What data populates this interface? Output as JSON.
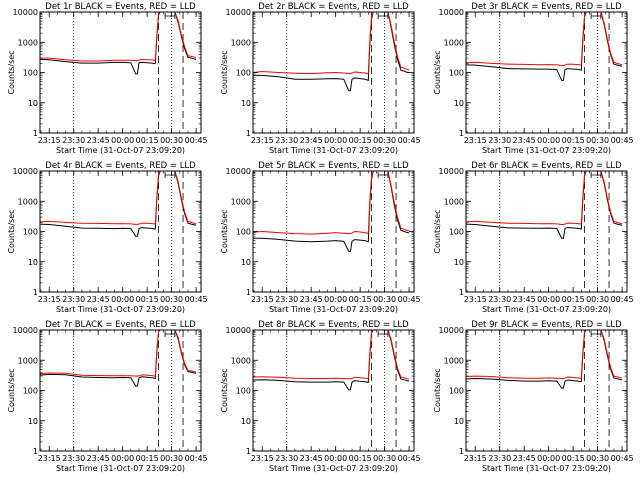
{
  "chart_data": {
    "type": "line",
    "scale": "log",
    "ylim": [
      1,
      10000
    ],
    "yticks": [
      "1",
      "10",
      "100",
      "1000",
      "10000"
    ],
    "ylabel": "Counts/sec",
    "xlabel": "Start Time (31-Oct-07 23:09:20)",
    "xlim": [
      "23:09:20",
      "00:48:00"
    ],
    "xtick_labels": [
      "23:15",
      "23:30",
      "23:45",
      "00:00",
      "00:15",
      "00:30",
      "00:45"
    ],
    "xticks": [
      "23:15",
      "23:30",
      "23:45",
      "00:00",
      "00:15",
      "00:30",
      "00:45"
    ],
    "dotted_lines": [
      "23:30",
      "00:30"
    ],
    "dashed_lines": [
      "00:22",
      "00:37"
    ],
    "colors": {
      "events": "#000000",
      "lld": "#ff0000"
    },
    "panels": [
      {
        "title": "Det 1r BLACK = Events, RED = LLD",
        "times": [
          "23:09",
          "23:15",
          "23:25",
          "23:35",
          "23:45",
          "23:55",
          "00:00",
          "00:05",
          "00:08",
          "00:09",
          "00:10",
          "00:11",
          "00:12",
          "00:15",
          "00:18",
          "00:20",
          "00:21",
          "00:22",
          "00:23",
          "00:24",
          "00:26",
          "00:30",
          "00:32",
          "00:34",
          "00:36",
          "00:38",
          "00:40",
          "00:42",
          "00:44",
          "00:45"
        ],
        "events": [
          270,
          265,
          230,
          205,
          205,
          215,
          215,
          210,
          90,
          90,
          210,
          215,
          215,
          210,
          205,
          195,
          1600,
          8000,
          10000,
          10000,
          10000,
          10000,
          10000,
          4500,
          1500,
          600,
          320,
          300,
          280,
          270
        ],
        "lld": [
          300,
          300,
          265,
          240,
          240,
          255,
          255,
          255,
          245,
          245,
          255,
          265,
          270,
          265,
          260,
          250,
          1800,
          9000,
          10000,
          10000,
          10000,
          10000,
          10000,
          5200,
          1700,
          700,
          360,
          340,
          320,
          310
        ],
        "series": [
          {
            "name": "Events",
            "color": "#000000"
          },
          {
            "name": "LLD",
            "color": "#ff0000"
          }
        ]
      },
      {
        "title": "Det 2r BLACK = Events, RED = LLD",
        "times": [
          "23:09",
          "23:15",
          "23:25",
          "23:35",
          "23:45",
          "23:55",
          "00:00",
          "00:05",
          "00:08",
          "00:09",
          "00:10",
          "00:11",
          "00:12",
          "00:15",
          "00:18",
          "00:20",
          "00:21",
          "00:22",
          "00:23",
          "00:24",
          "00:26",
          "00:30",
          "00:32",
          "00:34",
          "00:36",
          "00:38",
          "00:40",
          "00:42",
          "00:44",
          "00:45"
        ],
        "events": [
          80,
          80,
          72,
          60,
          60,
          62,
          63,
          60,
          25,
          25,
          60,
          65,
          66,
          63,
          60,
          55,
          1000,
          6000,
          10000,
          10000,
          10000,
          10000,
          10000,
          3000,
          800,
          260,
          120,
          110,
          100,
          100
        ],
        "lld": [
          100,
          108,
          100,
          95,
          92,
          98,
          100,
          96,
          92,
          92,
          96,
          102,
          104,
          100,
          96,
          90,
          1300,
          7000,
          10000,
          10000,
          10000,
          10000,
          10000,
          3500,
          1000,
          320,
          150,
          140,
          125,
          122
        ],
        "series": [
          {
            "name": "Events",
            "color": "#000000"
          },
          {
            "name": "LLD",
            "color": "#ff0000"
          }
        ]
      },
      {
        "title": "Det 3r BLACK = Events, RED = LLD",
        "times": [
          "23:09",
          "23:15",
          "23:25",
          "23:35",
          "23:45",
          "23:55",
          "00:00",
          "00:05",
          "00:08",
          "00:09",
          "00:10",
          "00:11",
          "00:12",
          "00:15",
          "00:18",
          "00:20",
          "00:21",
          "00:22",
          "00:23",
          "00:24",
          "00:26",
          "00:30",
          "00:32",
          "00:34",
          "00:36",
          "00:38",
          "00:40",
          "00:42",
          "00:44",
          "00:45"
        ],
        "events": [
          180,
          175,
          155,
          135,
          132,
          130,
          130,
          125,
          55,
          55,
          125,
          132,
          135,
          130,
          127,
          120,
          1300,
          7000,
          10000,
          10000,
          10000,
          10000,
          10000,
          3800,
          1100,
          380,
          190,
          175,
          165,
          160
        ],
        "lld": [
          210,
          218,
          200,
          190,
          185,
          180,
          182,
          178,
          170,
          170,
          176,
          186,
          190,
          186,
          182,
          175,
          1500,
          7800,
          10000,
          10000,
          10000,
          10000,
          10000,
          4300,
          1250,
          430,
          215,
          200,
          185,
          180
        ],
        "series": [
          {
            "name": "Events",
            "color": "#000000"
          },
          {
            "name": "LLD",
            "color": "#ff0000"
          }
        ]
      },
      {
        "title": "Det 4r BLACK = Events, RED = LLD",
        "times": [
          "23:09",
          "23:15",
          "23:25",
          "23:35",
          "23:45",
          "23:55",
          "00:00",
          "00:05",
          "00:08",
          "00:09",
          "00:10",
          "00:11",
          "00:12",
          "00:15",
          "00:18",
          "00:20",
          "00:21",
          "00:22",
          "00:23",
          "00:24",
          "00:26",
          "00:30",
          "00:32",
          "00:34",
          "00:36",
          "00:38",
          "00:40",
          "00:42",
          "00:44",
          "00:45"
        ],
        "events": [
          175,
          170,
          150,
          130,
          128,
          125,
          128,
          125,
          70,
          70,
          125,
          132,
          135,
          130,
          127,
          120,
          1300,
          7000,
          10000,
          10000,
          10000,
          10000,
          10000,
          3800,
          1100,
          380,
          190,
          175,
          165,
          160
        ],
        "lld": [
          210,
          215,
          200,
          188,
          185,
          180,
          182,
          178,
          172,
          172,
          176,
          186,
          190,
          186,
          182,
          175,
          1500,
          7800,
          10000,
          10000,
          10000,
          10000,
          10000,
          4300,
          1250,
          430,
          215,
          200,
          185,
          180
        ],
        "series": [
          {
            "name": "Events",
            "color": "#000000"
          },
          {
            "name": "LLD",
            "color": "#ff0000"
          }
        ]
      },
      {
        "title": "Det 5r BLACK = Events, RED = LLD",
        "times": [
          "23:09",
          "23:15",
          "23:25",
          "23:35",
          "23:45",
          "23:55",
          "00:00",
          "00:05",
          "00:08",
          "00:09",
          "00:10",
          "00:11",
          "00:12",
          "00:15",
          "00:18",
          "00:20",
          "00:21",
          "00:22",
          "00:23",
          "00:24",
          "00:26",
          "00:30",
          "00:32",
          "00:34",
          "00:36",
          "00:38",
          "00:40",
          "00:42",
          "00:44",
          "00:45"
        ],
        "events": [
          60,
          60,
          55,
          48,
          46,
          48,
          50,
          47,
          22,
          22,
          47,
          52,
          54,
          52,
          50,
          46,
          900,
          5500,
          10000,
          10000,
          10000,
          10000,
          10000,
          2800,
          700,
          230,
          110,
          100,
          92,
          90
        ],
        "lld": [
          95,
          100,
          92,
          85,
          82,
          88,
          92,
          88,
          84,
          84,
          88,
          96,
          100,
          96,
          92,
          86,
          1200,
          6500,
          10000,
          10000,
          10000,
          10000,
          10000,
          3200,
          850,
          280,
          130,
          118,
          108,
          105
        ],
        "series": [
          {
            "name": "Events",
            "color": "#000000"
          },
          {
            "name": "LLD",
            "color": "#ff0000"
          }
        ]
      },
      {
        "title": "Det 6r BLACK = Events, RED = LLD",
        "times": [
          "23:09",
          "23:15",
          "23:25",
          "23:35",
          "23:45",
          "23:55",
          "00:00",
          "00:05",
          "00:08",
          "00:09",
          "00:10",
          "00:11",
          "00:12",
          "00:15",
          "00:18",
          "00:20",
          "00:21",
          "00:22",
          "00:23",
          "00:24",
          "00:26",
          "00:30",
          "00:32",
          "00:34",
          "00:36",
          "00:38",
          "00:40",
          "00:42",
          "00:44",
          "00:45"
        ],
        "events": [
          175,
          170,
          150,
          132,
          130,
          128,
          130,
          126,
          60,
          60,
          126,
          133,
          136,
          131,
          127,
          120,
          1300,
          7000,
          10000,
          10000,
          10000,
          10000,
          10000,
          3800,
          1100,
          380,
          190,
          175,
          165,
          160
        ],
        "lld": [
          210,
          215,
          200,
          188,
          185,
          180,
          182,
          178,
          170,
          170,
          176,
          186,
          190,
          186,
          182,
          175,
          1500,
          7800,
          10000,
          10000,
          10000,
          10000,
          10000,
          4300,
          1250,
          430,
          215,
          200,
          185,
          180
        ],
        "series": [
          {
            "name": "Events",
            "color": "#000000"
          },
          {
            "name": "LLD",
            "color": "#ff0000"
          }
        ]
      },
      {
        "title": "Det 7r BLACK = Events, RED = LLD",
        "times": [
          "23:09",
          "23:15",
          "23:25",
          "23:35",
          "23:45",
          "23:55",
          "00:00",
          "00:05",
          "00:08",
          "00:09",
          "00:10",
          "00:11",
          "00:12",
          "00:15",
          "00:18",
          "00:20",
          "00:21",
          "00:22",
          "00:23",
          "00:24",
          "00:26",
          "00:30",
          "00:32",
          "00:34",
          "00:36",
          "00:38",
          "00:40",
          "00:42",
          "00:44",
          "00:45"
        ],
        "events": [
          320,
          340,
          330,
          280,
          270,
          265,
          270,
          265,
          140,
          140,
          265,
          280,
          285,
          275,
          265,
          250,
          2000,
          9000,
          10000,
          10000,
          10000,
          10000,
          10000,
          5000,
          1700,
          700,
          420,
          400,
          380,
          370
        ],
        "lld": [
          360,
          380,
          370,
          320,
          310,
          305,
          310,
          305,
          300,
          300,
          305,
          320,
          330,
          320,
          310,
          295,
          2300,
          9500,
          10000,
          10000,
          10000,
          10000,
          10000,
          5600,
          1900,
          780,
          460,
          440,
          420,
          410
        ],
        "series": [
          {
            "name": "Events",
            "color": "#000000"
          },
          {
            "name": "LLD",
            "color": "#ff0000"
          }
        ]
      },
      {
        "title": "Det 8r BLACK = Events, RED = LLD",
        "times": [
          "23:09",
          "23:15",
          "23:25",
          "23:35",
          "23:45",
          "23:55",
          "00:00",
          "00:05",
          "00:08",
          "00:09",
          "00:10",
          "00:11",
          "00:12",
          "00:15",
          "00:18",
          "00:20",
          "00:21",
          "00:22",
          "00:23",
          "00:24",
          "00:26",
          "00:30",
          "00:32",
          "00:34",
          "00:36",
          "00:38",
          "00:40",
          "00:42",
          "00:44",
          "00:45"
        ],
        "events": [
          220,
          225,
          215,
          195,
          190,
          190,
          195,
          190,
          105,
          105,
          190,
          205,
          210,
          200,
          195,
          185,
          1600,
          8000,
          10000,
          10000,
          10000,
          10000,
          10000,
          4200,
          1300,
          450,
          240,
          225,
          210,
          205
        ],
        "lld": [
          280,
          285,
          275,
          255,
          250,
          250,
          255,
          250,
          245,
          245,
          250,
          270,
          275,
          265,
          255,
          245,
          1900,
          8800,
          10000,
          10000,
          10000,
          10000,
          10000,
          4800,
          1500,
          520,
          280,
          262,
          245,
          240
        ],
        "series": [
          {
            "name": "Events",
            "color": "#000000"
          },
          {
            "name": "LLD",
            "color": "#ff0000"
          }
        ]
      },
      {
        "title": "Det 9r BLACK = Events, RED = LLD",
        "times": [
          "23:09",
          "23:15",
          "23:25",
          "23:35",
          "23:45",
          "23:55",
          "00:00",
          "00:05",
          "00:08",
          "00:09",
          "00:10",
          "00:11",
          "00:12",
          "00:15",
          "00:18",
          "00:20",
          "00:21",
          "00:22",
          "00:23",
          "00:24",
          "00:26",
          "00:30",
          "00:32",
          "00:34",
          "00:36",
          "00:38",
          "00:40",
          "00:42",
          "00:44",
          "00:45"
        ],
        "events": [
          240,
          250,
          240,
          215,
          205,
          205,
          210,
          205,
          120,
          120,
          205,
          218,
          222,
          212,
          205,
          195,
          1700,
          8300,
          10000,
          10000,
          10000,
          10000,
          10000,
          4400,
          1400,
          500,
          260,
          245,
          230,
          225
        ],
        "lld": [
          290,
          300,
          290,
          265,
          255,
          255,
          260,
          255,
          250,
          250,
          255,
          272,
          280,
          270,
          260,
          250,
          2000,
          9000,
          10000,
          10000,
          10000,
          10000,
          10000,
          5000,
          1600,
          570,
          300,
          282,
          265,
          260
        ],
        "series": [
          {
            "name": "Events",
            "color": "#000000"
          },
          {
            "name": "LLD",
            "color": "#ff0000"
          }
        ]
      }
    ]
  }
}
